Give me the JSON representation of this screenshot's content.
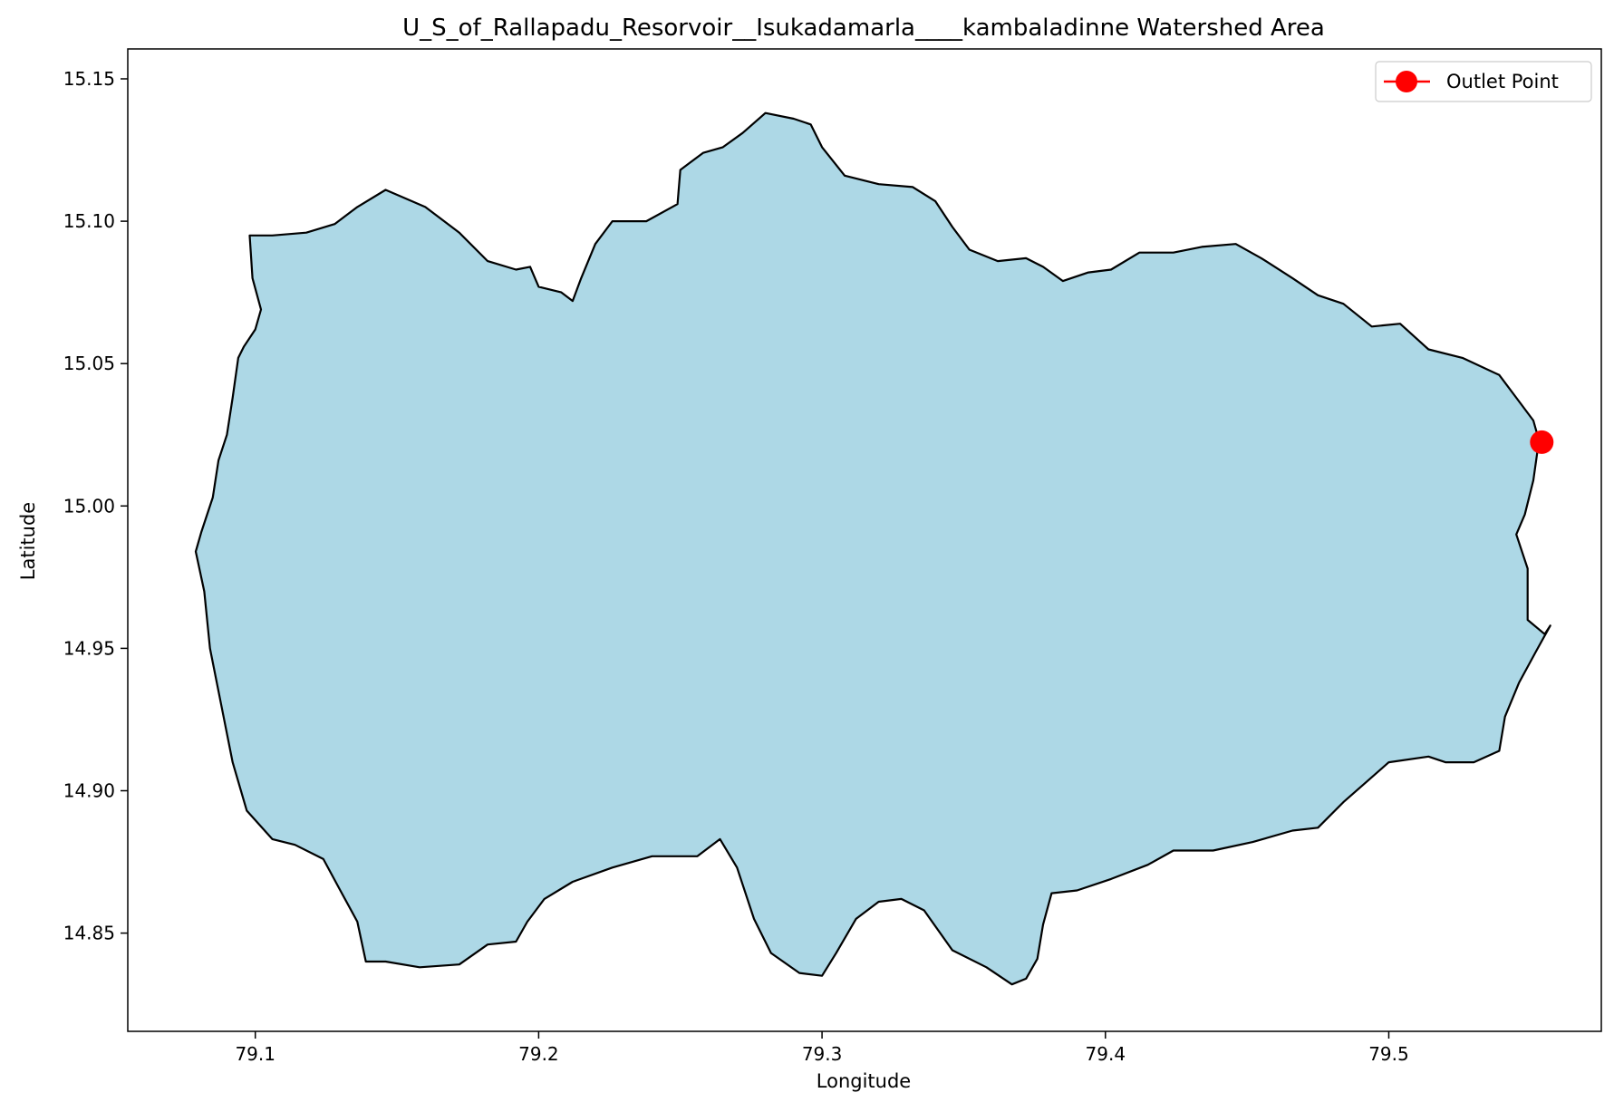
{
  "chart_data": {
    "type": "map",
    "title": "U_S_of_Rallapadu_Resorvoir__Isukadamarla____kambaladinne Watershed Area",
    "xlabel": "Longitude",
    "ylabel": "Latitude",
    "xlim": [
      79.055,
      79.575
    ],
    "ylim": [
      14.8155,
      15.1605
    ],
    "xticks": [
      79.1,
      79.2,
      79.3,
      79.4,
      79.5
    ],
    "xtick_labels": [
      "79.1",
      "79.2",
      "79.3",
      "79.4",
      "79.5"
    ],
    "yticks": [
      14.85,
      14.9,
      14.95,
      15.0,
      15.05,
      15.1,
      15.15
    ],
    "ytick_labels": [
      "14.85",
      "14.90",
      "14.95",
      "15.00",
      "15.05",
      "15.10",
      "15.15"
    ],
    "grid": false,
    "legend": {
      "position": "top-right",
      "entries": [
        {
          "label": "Outlet Point",
          "color": "#ff0000"
        }
      ]
    },
    "watershed": {
      "fill": "#add8e6",
      "stroke": "#000000",
      "boundary": [
        [
          79.098,
          15.095
        ],
        [
          79.106,
          15.095
        ],
        [
          79.118,
          15.096
        ],
        [
          79.128,
          15.099
        ],
        [
          79.136,
          15.105
        ],
        [
          79.146,
          15.111
        ],
        [
          79.16,
          15.105
        ],
        [
          79.172,
          15.096
        ],
        [
          79.182,
          15.086
        ],
        [
          79.192,
          15.083
        ],
        [
          79.197,
          15.084
        ],
        [
          79.2,
          15.077
        ],
        [
          79.208,
          15.075
        ],
        [
          79.212,
          15.072
        ],
        [
          79.215,
          15.08
        ],
        [
          79.22,
          15.092
        ],
        [
          79.226,
          15.1
        ],
        [
          79.238,
          15.1
        ],
        [
          79.249,
          15.106
        ],
        [
          79.25,
          15.118
        ],
        [
          79.258,
          15.124
        ],
        [
          79.265,
          15.126
        ],
        [
          79.272,
          15.131
        ],
        [
          79.28,
          15.138
        ],
        [
          79.29,
          15.136
        ],
        [
          79.296,
          15.134
        ],
        [
          79.3,
          15.126
        ],
        [
          79.308,
          15.116
        ],
        [
          79.32,
          15.113
        ],
        [
          79.332,
          15.112
        ],
        [
          79.34,
          15.107
        ],
        [
          79.346,
          15.098
        ],
        [
          79.352,
          15.09
        ],
        [
          79.362,
          15.086
        ],
        [
          79.372,
          15.087
        ],
        [
          79.378,
          15.084
        ],
        [
          79.385,
          15.079
        ],
        [
          79.394,
          15.082
        ],
        [
          79.402,
          15.083
        ],
        [
          79.412,
          15.089
        ],
        [
          79.424,
          15.089
        ],
        [
          79.434,
          15.091
        ],
        [
          79.446,
          15.092
        ],
        [
          79.455,
          15.087
        ],
        [
          79.466,
          15.08
        ],
        [
          79.475,
          15.074
        ],
        [
          79.484,
          15.071
        ],
        [
          79.494,
          15.063
        ],
        [
          79.504,
          15.064
        ],
        [
          79.514,
          15.055
        ],
        [
          79.526,
          15.052
        ],
        [
          79.539,
          15.046
        ],
        [
          79.545,
          15.038
        ],
        [
          79.551,
          15.03
        ],
        [
          79.553,
          15.023
        ],
        [
          79.551,
          15.009
        ],
        [
          79.548,
          14.997
        ],
        [
          79.545,
          14.99
        ],
        [
          79.549,
          14.978
        ],
        [
          79.549,
          14.96
        ],
        [
          79.555,
          14.955
        ],
        [
          79.557,
          14.958
        ],
        [
          79.552,
          14.949
        ],
        [
          79.546,
          14.938
        ],
        [
          79.541,
          14.926
        ],
        [
          79.539,
          14.914
        ],
        [
          79.53,
          14.91
        ],
        [
          79.52,
          14.91
        ],
        [
          79.514,
          14.912
        ],
        [
          79.5,
          14.91
        ],
        [
          79.492,
          14.903
        ],
        [
          79.484,
          14.896
        ],
        [
          79.475,
          14.887
        ],
        [
          79.466,
          14.886
        ],
        [
          79.452,
          14.882
        ],
        [
          79.438,
          14.879
        ],
        [
          79.424,
          14.879
        ],
        [
          79.415,
          14.874
        ],
        [
          79.402,
          14.869
        ],
        [
          79.39,
          14.865
        ],
        [
          79.381,
          14.864
        ],
        [
          79.378,
          14.853
        ],
        [
          79.376,
          14.841
        ],
        [
          79.372,
          14.834
        ],
        [
          79.367,
          14.832
        ],
        [
          79.358,
          14.838
        ],
        [
          79.346,
          14.844
        ],
        [
          79.336,
          14.858
        ],
        [
          79.328,
          14.862
        ],
        [
          79.32,
          14.861
        ],
        [
          79.312,
          14.855
        ],
        [
          79.305,
          14.843
        ],
        [
          79.3,
          14.835
        ],
        [
          79.292,
          14.836
        ],
        [
          79.282,
          14.843
        ],
        [
          79.276,
          14.855
        ],
        [
          79.27,
          14.873
        ],
        [
          79.264,
          14.883
        ],
        [
          79.256,
          14.877
        ],
        [
          79.24,
          14.877
        ],
        [
          79.226,
          14.873
        ],
        [
          79.212,
          14.868
        ],
        [
          79.202,
          14.862
        ],
        [
          79.196,
          14.854
        ],
        [
          79.192,
          14.847
        ],
        [
          79.182,
          14.846
        ],
        [
          79.172,
          14.839
        ],
        [
          79.158,
          14.838
        ],
        [
          79.146,
          14.84
        ],
        [
          79.139,
          14.84
        ],
        [
          79.136,
          14.854
        ],
        [
          79.13,
          14.865
        ],
        [
          79.124,
          14.876
        ],
        [
          79.114,
          14.881
        ],
        [
          79.106,
          14.883
        ],
        [
          79.097,
          14.893
        ],
        [
          79.092,
          14.91
        ],
        [
          79.088,
          14.93
        ],
        [
          79.084,
          14.95
        ],
        [
          79.082,
          14.97
        ],
        [
          79.079,
          14.984
        ],
        [
          79.081,
          14.991
        ],
        [
          79.085,
          15.003
        ],
        [
          79.087,
          15.016
        ],
        [
          79.09,
          15.025
        ],
        [
          79.092,
          15.038
        ],
        [
          79.094,
          15.052
        ],
        [
          79.096,
          15.056
        ],
        [
          79.1,
          15.062
        ],
        [
          79.102,
          15.069
        ],
        [
          79.099,
          15.08
        ],
        [
          79.098,
          15.095
        ]
      ]
    },
    "series": [
      {
        "name": "Outlet Point",
        "type": "point",
        "color": "#ff0000",
        "x": 79.554,
        "y": 15.0224
      }
    ]
  }
}
